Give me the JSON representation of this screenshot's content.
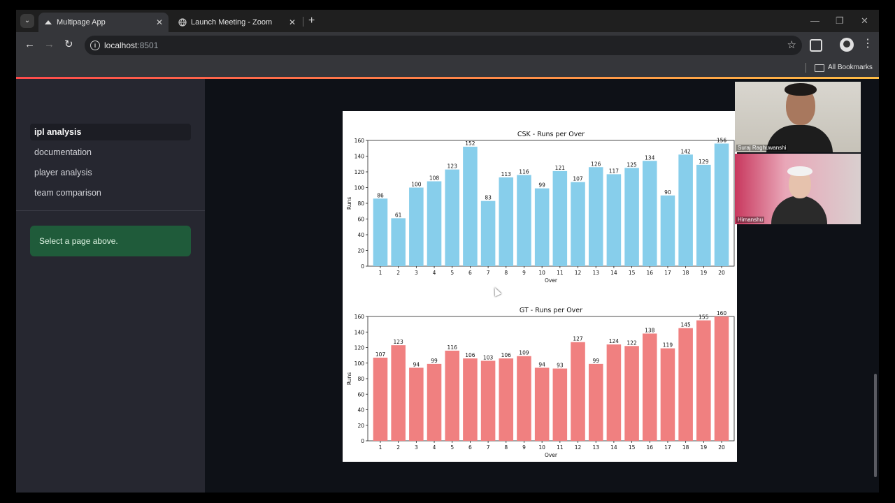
{
  "browser": {
    "tabs": [
      {
        "title": "Multipage App",
        "active": true
      },
      {
        "title": "Launch Meeting - Zoom",
        "active": false
      }
    ],
    "url": {
      "host": "localhost",
      "port": ":8501"
    },
    "bookmarks_label": "All Bookmarks"
  },
  "sidebar": {
    "nav": [
      {
        "label": "ipl analysis",
        "active": true
      },
      {
        "label": "documentation",
        "active": false
      },
      {
        "label": "player analysis",
        "active": false
      },
      {
        "label": "team comparison",
        "active": false
      }
    ],
    "message": "Select a page above."
  },
  "participants": [
    {
      "name": "Suraj Raghuwanshi"
    },
    {
      "name": "Himanshu"
    }
  ],
  "chart_data": [
    {
      "type": "bar",
      "title": "CSK - Runs per Over",
      "xlabel": "Over",
      "ylabel": "Runs",
      "ylim": [
        0,
        160
      ],
      "yticks": [
        0,
        20,
        40,
        60,
        80,
        100,
        120,
        140,
        160
      ],
      "categories": [
        "1",
        "2",
        "3",
        "4",
        "5",
        "6",
        "7",
        "8",
        "9",
        "10",
        "11",
        "12",
        "13",
        "14",
        "15",
        "16",
        "17",
        "18",
        "19",
        "20"
      ],
      "values": [
        86,
        61,
        100,
        108,
        123,
        152,
        83,
        113,
        116,
        99,
        121,
        107,
        126,
        117,
        125,
        134,
        90,
        142,
        129,
        156
      ],
      "color": "#87ceeb"
    },
    {
      "type": "bar",
      "title": "GT - Runs per Over",
      "xlabel": "Over",
      "ylabel": "Runs",
      "ylim": [
        0,
        160
      ],
      "yticks": [
        0,
        20,
        40,
        60,
        80,
        100,
        120,
        140,
        160
      ],
      "categories": [
        "1",
        "2",
        "3",
        "4",
        "5",
        "6",
        "7",
        "8",
        "9",
        "10",
        "11",
        "12",
        "13",
        "14",
        "15",
        "16",
        "17",
        "18",
        "19",
        "20"
      ],
      "values": [
        107,
        123,
        94,
        99,
        116,
        106,
        103,
        106,
        109,
        94,
        93,
        127,
        99,
        124,
        122,
        138,
        119,
        145,
        155,
        160
      ],
      "color": "#f08080"
    }
  ]
}
